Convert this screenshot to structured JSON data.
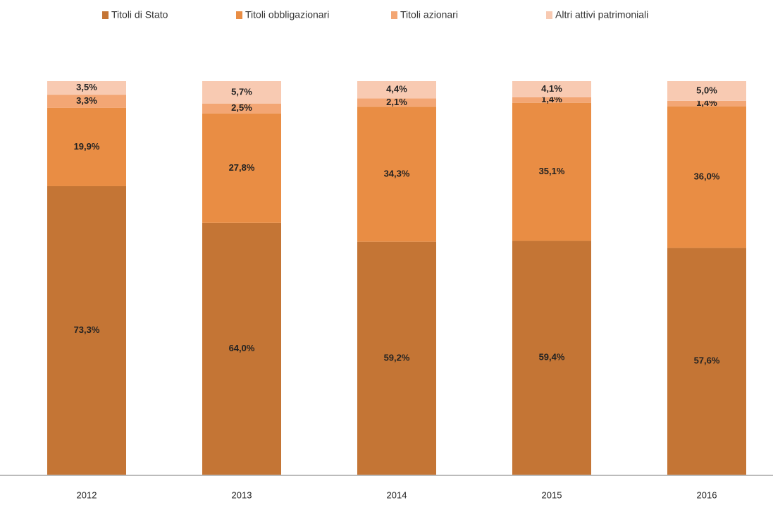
{
  "chart_data": {
    "type": "stacked_bar",
    "categories": [
      "2012",
      "2013",
      "2014",
      "2015",
      "2016"
    ],
    "series": [
      {
        "name": "Titoli di Stato",
        "color": "#c47535",
        "values": [
          73.3,
          64.0,
          59.2,
          59.4,
          57.6
        ],
        "value_labels": [
          "73,3%",
          "64,0%",
          "59,2%",
          "59,4%",
          "57,6%"
        ]
      },
      {
        "name": "Titoli obbligazionari",
        "color": "#e98d44",
        "values": [
          19.9,
          27.8,
          34.3,
          35.1,
          36.0
        ],
        "value_labels": [
          "19,9%",
          "27,8%",
          "34,3%",
          "35,1%",
          "36,0%"
        ]
      },
      {
        "name": "Titoli azionari",
        "color": "#f3a674",
        "values": [
          3.3,
          2.5,
          2.1,
          1.4,
          1.4
        ],
        "value_labels": [
          "3,3%",
          "2,5%",
          "2,1%",
          "1,4%",
          "1,4%"
        ]
      },
      {
        "name": "Altri attivi patrimoniali",
        "color": "#f8cab2",
        "values": [
          3.5,
          5.7,
          4.4,
          4.1,
          5.0
        ],
        "value_labels": [
          "3,5%",
          "5,7%",
          "4,4%",
          "4,1%",
          "5,0%"
        ]
      }
    ]
  }
}
